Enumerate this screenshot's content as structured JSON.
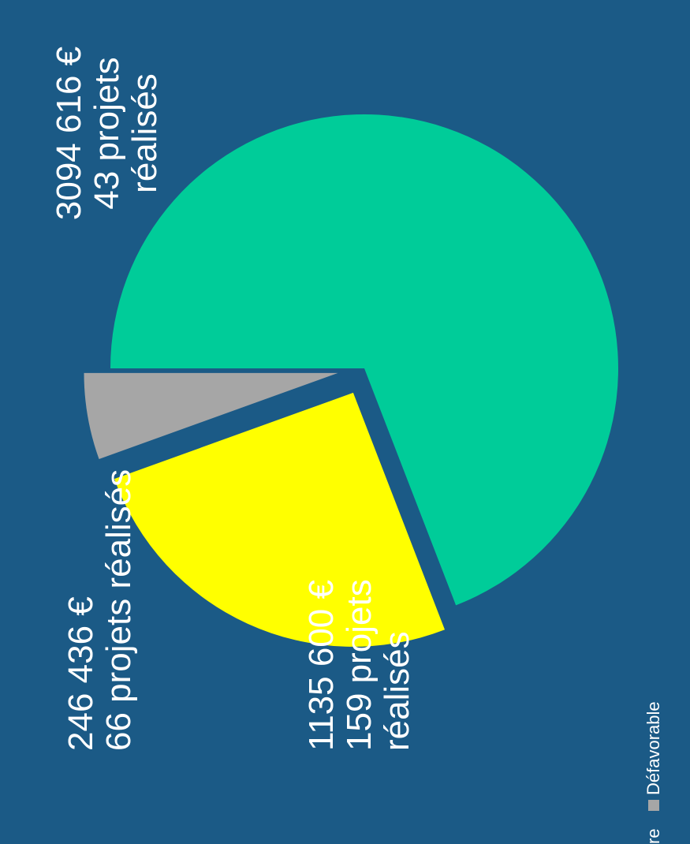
{
  "colors": {
    "background": "#1b5a86",
    "text": "#ffffff",
    "legend_text": "#ffffff"
  },
  "chart_data": {
    "type": "pie",
    "rotation_degrees": -90,
    "slices": [
      {
        "value": 3094616,
        "label_lines": [
          "3094 616 €",
          "43 projets",
          "réalisés"
        ],
        "color": "#00cc99"
      },
      {
        "value": 1135600,
        "label_lines": [
          "1135 600 €",
          "159 projets",
          "réalisés"
        ],
        "color": "#ffff00"
      },
      {
        "value": 246436,
        "label_lines": [
          "246 436 €",
          "66 projets réalisés"
        ],
        "color": "#a6a6a6"
      }
    ],
    "legend": {
      "placement": "bottom",
      "items": [
        {
          "label": "re",
          "color": "#ffff00",
          "marker": false
        },
        {
          "label": "Défavorable",
          "color": "#a6a6a6",
          "marker": true
        }
      ]
    }
  }
}
